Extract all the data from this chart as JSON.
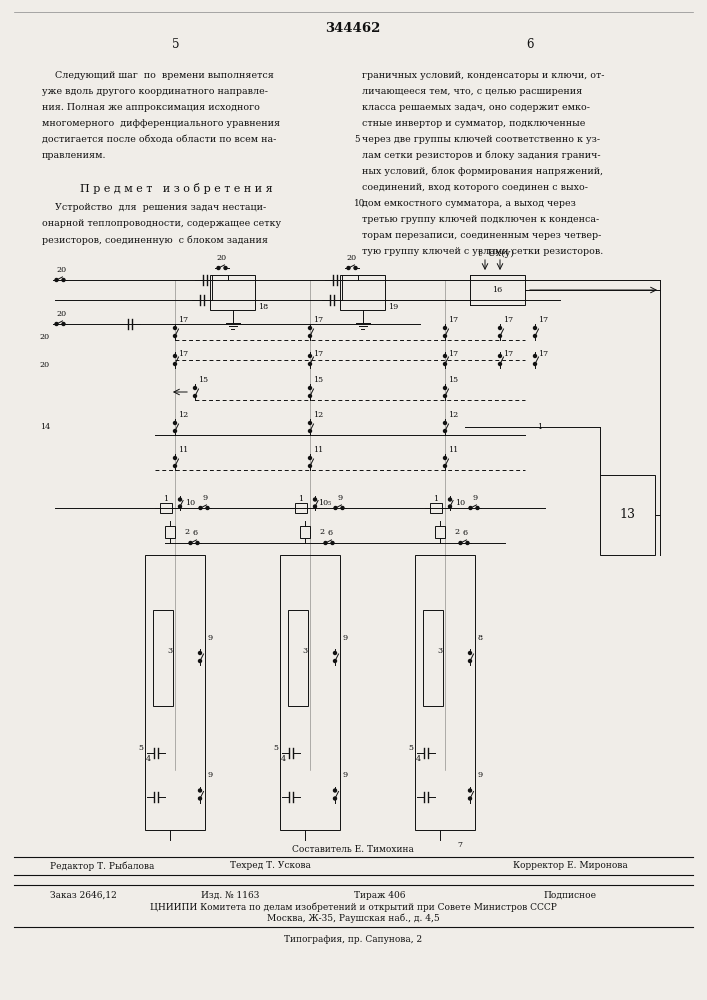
{
  "page_number": "344462",
  "bg_color": "#f0ede8",
  "text_color": "#1a1a1a",
  "left_col_texts": [
    [
      55,
      925,
      "Следующий шаг  по  времени выполняется"
    ],
    [
      42,
      909,
      "уже вдоль другого координатного направле-"
    ],
    [
      42,
      893,
      "ния. Полная же аппроксимация исходного"
    ],
    [
      42,
      877,
      "многомерного  дифференциального уравнения"
    ],
    [
      42,
      861,
      "достигается после обхода области по всем на-"
    ],
    [
      42,
      845,
      "правлениям."
    ]
  ],
  "right_col_texts": [
    [
      362,
      925,
      "граничных условий, конденсаторы и ключи, от-"
    ],
    [
      362,
      909,
      "личающееся тем, что, с целью расширения"
    ],
    [
      362,
      893,
      "класса решаемых задач, оно содержит емко-"
    ],
    [
      362,
      877,
      "стные инвертор и сумматор, подключенные"
    ],
    [
      362,
      861,
      "через две группы ключей соответственно к уз-"
    ],
    [
      362,
      845,
      "лам сетки резисторов и блоку задания гранич-"
    ],
    [
      362,
      829,
      "ных условий, блок формирования напряжений,"
    ],
    [
      362,
      813,
      "соединений, вход которого соединен с выхо-"
    ],
    [
      362,
      797,
      "дом емкостного сумматора, а выход через"
    ],
    [
      362,
      781,
      "третью группу ключей подключен к конденса-"
    ],
    [
      362,
      765,
      "торам перезаписи, соединенным через четвер-"
    ],
    [
      362,
      749,
      "тую группу ключей с узлами сетки резисторов."
    ]
  ],
  "footer": {
    "sestavitel": "Составитель Е. Тимохина",
    "redaktor": "Редактор Т. Рыбалова",
    "tehred": "Техред Т. Ускова",
    "korrektor": "Корректор Е. Миронова",
    "zakaz": "Заказ 2646,12",
    "izd": "Изд. № 1163",
    "tirazh": "Тираж 406",
    "podpisnoe": "Подписное",
    "cniiipi": "ЦНИИПИ Комитета по делам изобретений и открытий при Совете Министров СССР",
    "moskva": "Москва, Ж-35, Раушская наб., д. 4,5",
    "tipografiya": "Типография, пр. Сапунова, 2"
  }
}
